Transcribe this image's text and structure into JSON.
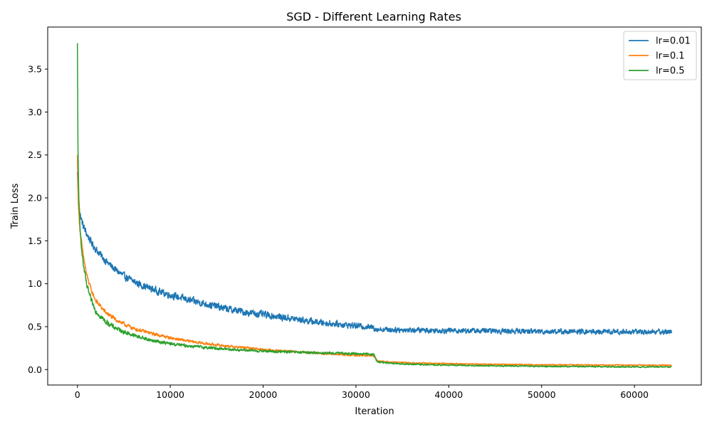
{
  "chart_data": {
    "type": "line",
    "title": "SGD - Different Learning Rates",
    "xlabel": "Iteration",
    "ylabel": "Train Loss",
    "xlim": [
      -3200,
      67200
    ],
    "ylim": [
      -0.18,
      3.99
    ],
    "xticks": [
      0,
      10000,
      20000,
      30000,
      40000,
      50000,
      60000
    ],
    "xtick_labels": [
      "0",
      "10000",
      "20000",
      "30000",
      "40000",
      "50000",
      "60000"
    ],
    "yticks": [
      0.0,
      0.5,
      1.0,
      1.5,
      2.0,
      2.5,
      3.0,
      3.5
    ],
    "ytick_labels": [
      "0.0",
      "0.5",
      "1.0",
      "1.5",
      "2.0",
      "2.5",
      "3.0",
      "3.5"
    ],
    "grid": false,
    "legend_position": "top-right",
    "series": [
      {
        "name": "lr=0.01",
        "color": "#1f77b4",
        "x": [
          0,
          100,
          300,
          600,
          1000,
          1500,
          2000,
          3000,
          4000,
          5000,
          6000,
          7000,
          8000,
          9000,
          10000,
          12000,
          14000,
          16000,
          18000,
          20000,
          22000,
          24000,
          26000,
          28000,
          30000,
          31900,
          32200,
          34000,
          36000,
          40000,
          45000,
          50000,
          55000,
          60000,
          64000
        ],
        "y": [
          2.3,
          2.0,
          1.8,
          1.68,
          1.58,
          1.48,
          1.4,
          1.27,
          1.17,
          1.09,
          1.03,
          0.98,
          0.94,
          0.9,
          0.87,
          0.81,
          0.76,
          0.71,
          0.67,
          0.64,
          0.61,
          0.58,
          0.55,
          0.53,
          0.51,
          0.49,
          0.47,
          0.465,
          0.46,
          0.455,
          0.45,
          0.445,
          0.44,
          0.44,
          0.44
        ],
        "noise": 0.035
      },
      {
        "name": "lr=0.1",
        "color": "#ff7f0e",
        "x": [
          0,
          100,
          300,
          600,
          1000,
          1500,
          2000,
          3000,
          4000,
          5000,
          6000,
          8000,
          10000,
          12000,
          14000,
          16000,
          18000,
          20000,
          24000,
          28000,
          31900,
          32300,
          34000,
          38000,
          44000,
          50000,
          56000,
          64000
        ],
        "y": [
          2.5,
          1.9,
          1.6,
          1.35,
          1.1,
          0.92,
          0.8,
          0.67,
          0.59,
          0.53,
          0.48,
          0.42,
          0.37,
          0.33,
          0.3,
          0.275,
          0.255,
          0.235,
          0.205,
          0.175,
          0.16,
          0.1,
          0.085,
          0.072,
          0.062,
          0.056,
          0.053,
          0.05
        ],
        "noise": 0.022
      },
      {
        "name": "lr=0.5",
        "color": "#2ca02c",
        "x": [
          0,
          60,
          150,
          300,
          600,
          1000,
          1500,
          2000,
          3000,
          4000,
          5000,
          6000,
          8000,
          10000,
          12000,
          14000,
          16000,
          18000,
          20000,
          24000,
          28000,
          31900,
          32300,
          34000,
          38000,
          44000,
          50000,
          56000,
          64000
        ],
        "y": [
          3.8,
          2.6,
          2.0,
          1.6,
          1.25,
          0.98,
          0.8,
          0.68,
          0.56,
          0.49,
          0.44,
          0.4,
          0.34,
          0.3,
          0.275,
          0.255,
          0.24,
          0.225,
          0.215,
          0.2,
          0.19,
          0.18,
          0.09,
          0.07,
          0.055,
          0.045,
          0.038,
          0.034,
          0.03
        ],
        "noise": 0.028
      }
    ]
  }
}
